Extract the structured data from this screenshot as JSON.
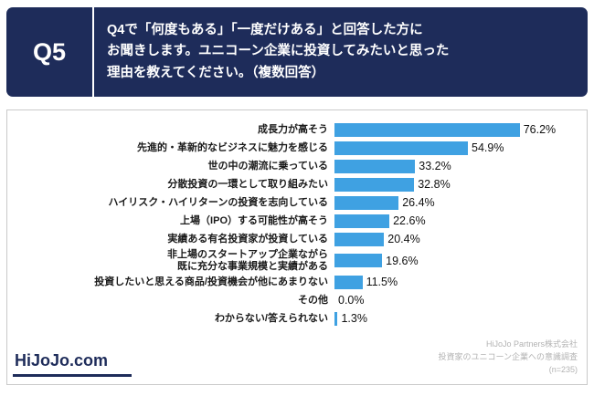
{
  "header": {
    "badge": "Q5",
    "question": "Q4で「何度もある」「一度だけある」と回答した方に\nお聞きします。ユニコーン企業に投資してみたいと思った\n理由を教えてください。（複数回答）"
  },
  "chart_data": {
    "type": "bar",
    "orientation": "horizontal",
    "title": "ユニコーン企業に投資してみたいと思った理由（複数回答）",
    "categories": [
      "成長力が高そう",
      "先進的・革新的なビジネスに魅力を感じる",
      "世の中の潮流に乗っている",
      "分散投資の一環として取り組みたい",
      "ハイリスク・ハイリターンの投資を志向している",
      "上場（IPO）する可能性が高そう",
      "実績ある有名投資家が投資している",
      "非上場のスタートアップ企業ながら\n既に充分な事業規模と実績がある",
      "投資したいと思える商品/投資機会が他にあまりない",
      "その他",
      "わからない/答えられない"
    ],
    "values": [
      76.2,
      54.9,
      33.2,
      32.8,
      26.4,
      22.6,
      20.4,
      19.6,
      11.5,
      0.0,
      1.3
    ],
    "value_labels": [
      "76.2%",
      "54.9%",
      "33.2%",
      "32.8%",
      "26.4%",
      "22.6%",
      "20.4%",
      "19.6%",
      "11.5%",
      "0.0%",
      "1.3%"
    ],
    "xlabel": "",
    "ylabel": "",
    "xlim": [
      0,
      100
    ],
    "grid": false,
    "legend": "none",
    "bar_color": "#3fa1e2"
  },
  "footer": {
    "logo_text": "HiJoJo.com",
    "source": "HiJoJo Partners株式会社\n投資家のユニコーン企業への意識調査\n(n=235)"
  },
  "colors": {
    "header_bg": "#1e2c5a",
    "bar": "#3fa1e2",
    "logo": "#1e2c5a",
    "source_text": "#b3b3b3"
  }
}
